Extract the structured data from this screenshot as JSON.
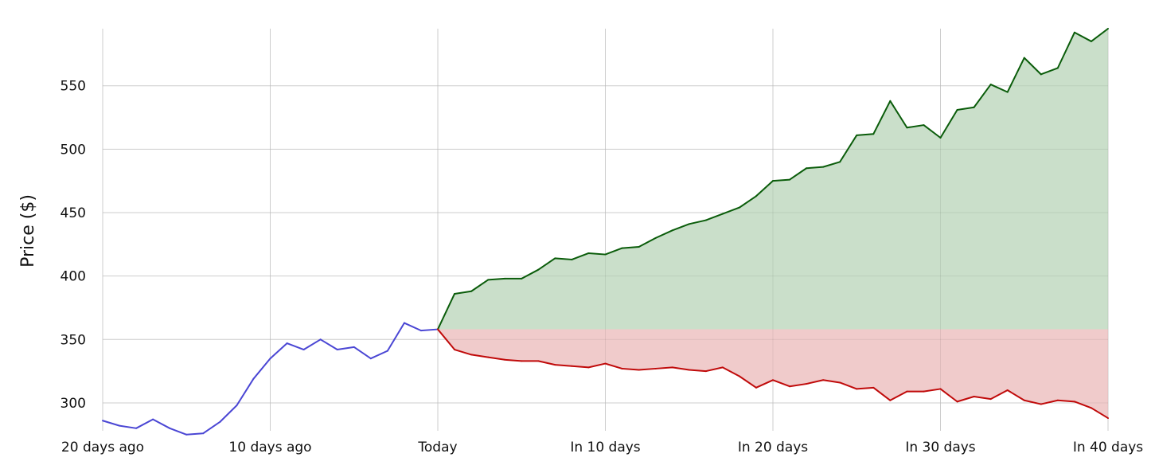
{
  "chart_data": {
    "type": "line",
    "title": "",
    "xlabel": "",
    "ylabel": "Price ($)",
    "grid": true,
    "xlim": [
      -20,
      40
    ],
    "ylim": [
      278,
      595
    ],
    "x_ticks": [
      {
        "value": -20,
        "label": "20 days ago"
      },
      {
        "value": -10,
        "label": "10 days ago"
      },
      {
        "value": 0,
        "label": "Today"
      },
      {
        "value": 10,
        "label": "In 10 days"
      },
      {
        "value": 20,
        "label": "In 20 days"
      },
      {
        "value": 30,
        "label": "In 30 days"
      },
      {
        "value": 40,
        "label": "In 40 days"
      }
    ],
    "y_ticks": [
      {
        "value": 300,
        "label": "300"
      },
      {
        "value": 350,
        "label": "350"
      },
      {
        "value": 400,
        "label": "400"
      },
      {
        "value": 450,
        "label": "450"
      },
      {
        "value": 500,
        "label": "500"
      },
      {
        "value": 550,
        "label": "550"
      }
    ],
    "baseline": 358,
    "colors": {
      "history": "#4a46d4",
      "upper": "#0a5c0a",
      "lower": "#c00a0a",
      "upper_fill": "#cadfca",
      "lower_fill": "#f0cbcb",
      "grid": "#dddddd"
    },
    "series": [
      {
        "key": "history",
        "x": [
          -20,
          -19,
          -18,
          -17,
          -16,
          -15,
          -14,
          -13,
          -12,
          -11,
          -10,
          -9,
          -8,
          -7,
          -6,
          -5,
          -4,
          -3,
          -2,
          -1,
          0
        ],
        "values": [
          286,
          282,
          280,
          287,
          280,
          275,
          276,
          285,
          298,
          319,
          335,
          347,
          342,
          350,
          342,
          344,
          335,
          341,
          363,
          357,
          358
        ]
      },
      {
        "key": "upper",
        "x": [
          0,
          1,
          2,
          3,
          4,
          5,
          6,
          7,
          8,
          9,
          10,
          11,
          12,
          13,
          14,
          15,
          16,
          17,
          18,
          19,
          20,
          21,
          22,
          23,
          24,
          25,
          26,
          27,
          28,
          29,
          30,
          31,
          32,
          33,
          34,
          35,
          36,
          37,
          38,
          39,
          40
        ],
        "values": [
          358,
          386,
          388,
          397,
          398,
          398,
          405,
          414,
          413,
          418,
          417,
          422,
          423,
          430,
          436,
          441,
          444,
          449,
          454,
          463,
          475,
          476,
          485,
          486,
          490,
          511,
          512,
          538,
          517,
          519,
          509,
          531,
          533,
          551,
          545,
          572,
          559,
          564,
          592,
          585,
          595
        ]
      },
      {
        "key": "lower",
        "x": [
          0,
          1,
          2,
          3,
          4,
          5,
          6,
          7,
          8,
          9,
          10,
          11,
          12,
          13,
          14,
          15,
          16,
          17,
          18,
          19,
          20,
          21,
          22,
          23,
          24,
          25,
          26,
          27,
          28,
          29,
          30,
          31,
          32,
          33,
          34,
          35,
          36,
          37,
          38,
          39,
          40
        ],
        "values": [
          358,
          342,
          338,
          336,
          334,
          333,
          333,
          330,
          329,
          328,
          331,
          327,
          326,
          327,
          328,
          326,
          325,
          328,
          321,
          312,
          318,
          313,
          315,
          318,
          316,
          311,
          312,
          302,
          309,
          309,
          311,
          301,
          305,
          303,
          310,
          302,
          299,
          302,
          301,
          296,
          288
        ]
      }
    ]
  }
}
